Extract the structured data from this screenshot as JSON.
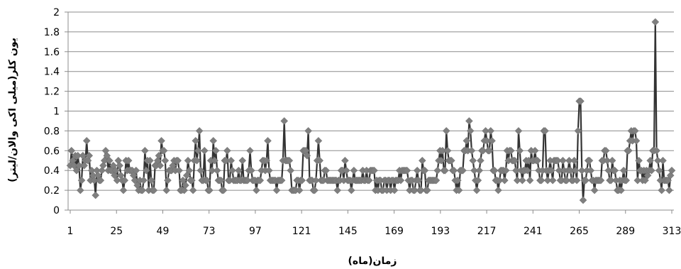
{
  "chart_data": {
    "type": "line",
    "title": "",
    "xlabel": "زمان(ماه)",
    "ylabel": "یون کلر(میلی اکی والان/لیتر)",
    "xlim": [
      1,
      313
    ],
    "ylim": [
      0,
      2
    ],
    "x_ticks": [
      1,
      25,
      49,
      73,
      97,
      121,
      145,
      169,
      193,
      217,
      241,
      265,
      289,
      313
    ],
    "y_ticks": [
      0,
      0.2,
      0.4,
      0.6,
      0.8,
      1,
      1.2,
      1.4,
      1.6,
      1.8,
      2
    ],
    "grid": "horizontal",
    "legend": "none",
    "series_color": "#333333",
    "marker_color": "#7f7f7f",
    "marker": "diamond",
    "series": [
      {
        "x_start": 1,
        "values": [
          0.45,
          0.6,
          0.5,
          0.45,
          0.55,
          0.4,
          0.55,
          0.45,
          0.2,
          0.3,
          0.55,
          0.45,
          0.5,
          0.7,
          0.5,
          0.55,
          0.3,
          0.4,
          0.35,
          0.3,
          0.15,
          0.4,
          0.35,
          0.3,
          0.3,
          0.4,
          0.45,
          0.5,
          0.6,
          0.55,
          0.4,
          0.5,
          0.4,
          0.4,
          0.45,
          0.35,
          0.4,
          0.3,
          0.5,
          0.45,
          0.35,
          0.3,
          0.2,
          0.3,
          0.5,
          0.4,
          0.5,
          0.4,
          0.4,
          0.4,
          0.35,
          0.3,
          0.4,
          0.25,
          0.2,
          0.3,
          0.2,
          0.2,
          0.3,
          0.6,
          0.4,
          0.5,
          0.2,
          0.5,
          0.3,
          0.2,
          0.2,
          0.45,
          0.45,
          0.5,
          0.55,
          0.45,
          0.7,
          0.6,
          0.6,
          0.5,
          0.2,
          0.3,
          0.4,
          0.4,
          0.4,
          0.45,
          0.5,
          0.4,
          0.5,
          0.5,
          0.4,
          0.2,
          0.2,
          0.3,
          0.2,
          0.25,
          0.35,
          0.5,
          0.4,
          0.3,
          0.3,
          0.2,
          0.5,
          0.7,
          0.5,
          0.6,
          0.8,
          0.4,
          0.3,
          0.3,
          0.6,
          0.3,
          0.3,
          0.2,
          0.2,
          0.5,
          0.4,
          0.7,
          0.5,
          0.6,
          0.4,
          0.3,
          0.3,
          0.3,
          0.2,
          0.2,
          0.5,
          0.5,
          0.6,
          0.3,
          0.3,
          0.5,
          0.4,
          0.3,
          0.3,
          0.3,
          0.3,
          0.4,
          0.3,
          0.3,
          0.5,
          0.3,
          0.3,
          0.3,
          0.3,
          0.4,
          0.6,
          0.4,
          0.3,
          0.3,
          0.3,
          0.2,
          0.3,
          0.3,
          0.3,
          0.4,
          0.5,
          0.5,
          0.4,
          0.5,
          0.7,
          0.4,
          0.3,
          0.3,
          0.3,
          0.3,
          0.3,
          0.2,
          0.3,
          0.3,
          0.3,
          0.3,
          0.5,
          0.9,
          0.5,
          0.5,
          0.5,
          0.5,
          0.4,
          0.2,
          0.2,
          0.2,
          0.2,
          0.3,
          0.3,
          0.2,
          0.3,
          0.3,
          0.6,
          0.6,
          0.6,
          0.55,
          0.8,
          0.3,
          0.3,
          0.3,
          0.2,
          0.2,
          0.3,
          0.5,
          0.7,
          0.5,
          0.3,
          0.3,
          0.3,
          0.4,
          0.4,
          0.3,
          0.3,
          0.3,
          0.3,
          0.3,
          0.3,
          0.3,
          0.3,
          0.2,
          0.3,
          0.3,
          0.4,
          0.4,
          0.3,
          0.5,
          0.4,
          0.3,
          0.3,
          0.3,
          0.2,
          0.3,
          0.4,
          0.3,
          0.3,
          0.3,
          0.3,
          0.3,
          0.3,
          0.4,
          0.3,
          0.3,
          0.4,
          0.3,
          0.3,
          0.4,
          0.4,
          0.4,
          0.4,
          0.2,
          0.3,
          0.2,
          0.3,
          0.3,
          0.2,
          0.2,
          0.3,
          0.3,
          0.2,
          0.3,
          0.3,
          0.2,
          0.3,
          0.3,
          0.2,
          0.3,
          0.3,
          0.3,
          0.4,
          0.3,
          0.4,
          0.4,
          0.4,
          0.4,
          0.4,
          0.3,
          0.2,
          0.3,
          0.3,
          0.2,
          0.2,
          0.3,
          0.4,
          0.3,
          0.2,
          0.2,
          0.5,
          0.4,
          0.4,
          0.2,
          0.2,
          0.3,
          0.3,
          0.3,
          0.3,
          0.3,
          0.3,
          0.3,
          0.4,
          0.5,
          0.6,
          0.5,
          0.6,
          0.4,
          0.4,
          0.8,
          0.6,
          0.5,
          0.5,
          0.5,
          0.4,
          0.4,
          0.3,
          0.2,
          0.3,
          0.2,
          0.4,
          0.4,
          0.4,
          0.6,
          0.6,
          0.7,
          0.6,
          0.9,
          0.8,
          0.6,
          0.5,
          0.4,
          0.3,
          0.2,
          0.3,
          0.4,
          0.5,
          0.6,
          0.6,
          0.7,
          0.8,
          0.7,
          0.6,
          0.6,
          0.8,
          0.7,
          0.4,
          0.4,
          0.3,
          0.3,
          0.2,
          0.3,
          0.4,
          0.4,
          0.4,
          0.3,
          0.4,
          0.6,
          0.5,
          0.6,
          0.6,
          0.5,
          0.5,
          0.5,
          0.4,
          0.3,
          0.8,
          0.6,
          0.4,
          0.3,
          0.4,
          0.4,
          0.5,
          0.4,
          0.5,
          0.3,
          0.6,
          0.5,
          0.5,
          0.6,
          0.5,
          0.5,
          0.4,
          0.3,
          0.3,
          0.4,
          0.8,
          0.8,
          0.4,
          0.3,
          0.4,
          0.5,
          0.4,
          0.3,
          0.5,
          0.5,
          0.5,
          0.5,
          0.4,
          0.3,
          0.3,
          0.5,
          0.4,
          0.3,
          0.3,
          0.4,
          0.5,
          0.4,
          0.3,
          0.3,
          0.5,
          0.4,
          0.3,
          0.8,
          1.1,
          1.1,
          0.4,
          0.1,
          0.3,
          0.3,
          0.4,
          0.5,
          0.5,
          0.4,
          0.3,
          0.3,
          0.2,
          0.3,
          0.3,
          0.3,
          0.3,
          0.3,
          0.5,
          0.5,
          0.6,
          0.6,
          0.5,
          0.4,
          0.3,
          0.3,
          0.5,
          0.4,
          0.4,
          0.3,
          0.2,
          0.2,
          0.3,
          0.2,
          0.3,
          0.4,
          0.3,
          0.3,
          0.6,
          0.6,
          0.7,
          0.8,
          0.7,
          0.8,
          0.8,
          0.7,
          0.3,
          0.5,
          0.4,
          0.4,
          0.3,
          0.4,
          0.3,
          0.4,
          0.35,
          0.4,
          0.5,
          0.4,
          0.6,
          0.6,
          1.9,
          0.6,
          0.5,
          0.4,
          0.3,
          0.2,
          0.5,
          0.3,
          0.3,
          0.3,
          0.3,
          0.2,
          0.35,
          0.4
        ]
      }
    ]
  }
}
